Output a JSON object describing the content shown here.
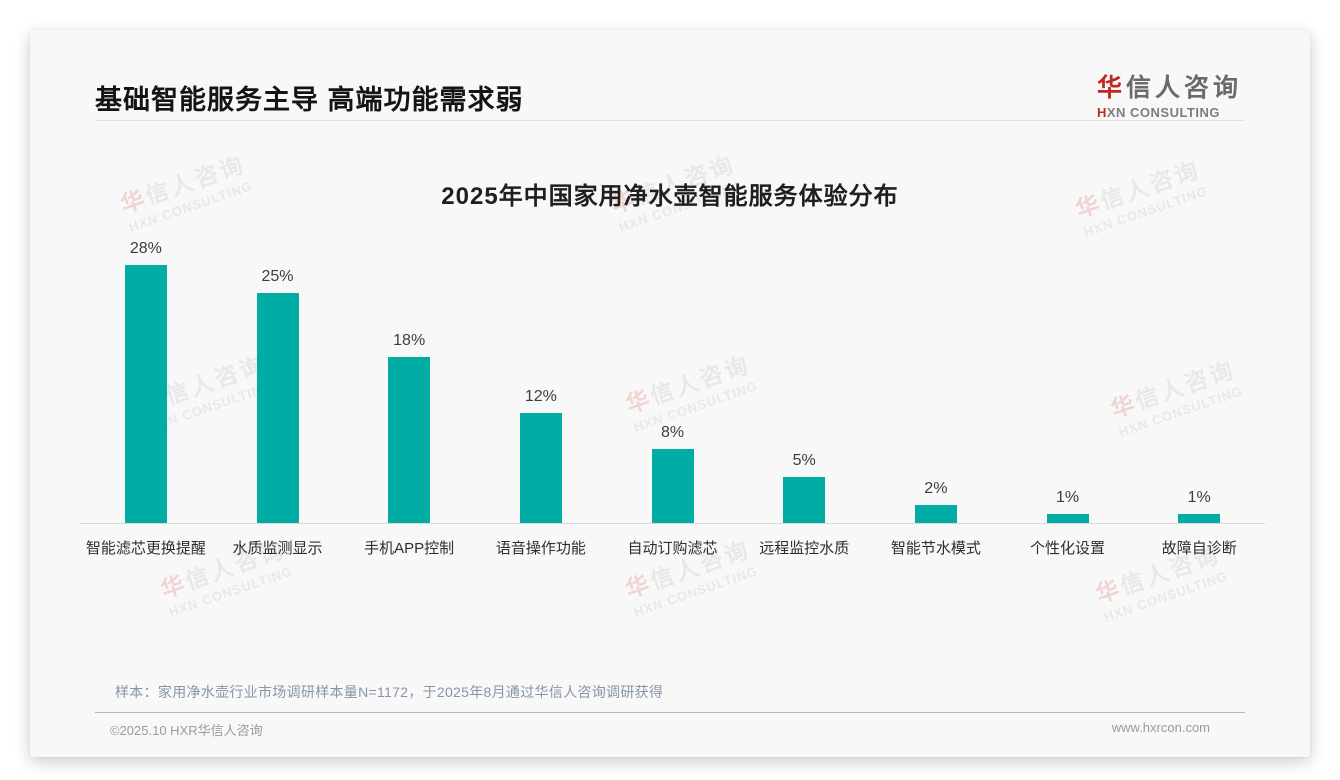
{
  "page": {
    "header": {
      "title": "基础智能服务主导 高端功能需求弱"
    },
    "logo": {
      "cn_first": "华",
      "cn_rest": "信人咨询",
      "en_first": "H",
      "en_rest": "XN CONSULTING"
    },
    "footer": {
      "note": "样本：家用净水壶行业市场调研样本量N=1172，于2025年8月通过华信人咨询调研获得",
      "copyright": "©2025.10 HXR华信人咨询",
      "website": "www.hxrcon.com"
    }
  },
  "watermark": {
    "cn_first": "华",
    "cn_rest": "信人咨询",
    "en": "HXN CONSULTING"
  },
  "chart_data": {
    "type": "bar",
    "title": "2025年中国家用净水壶智能服务体验分布",
    "categories": [
      "智能滤芯更换提醒",
      "水质监测显示",
      "手机APP控制",
      "语音操作功能",
      "自动订购滤芯",
      "远程监控水质",
      "智能节水模式",
      "个性化设置",
      "故障自诊断"
    ],
    "values": [
      28,
      25,
      18,
      12,
      8,
      5,
      2,
      1,
      1
    ],
    "unit": "%",
    "bar_color": "#00ACA3",
    "value_label_color": "#3d3d3d",
    "ylim": [
      0,
      30
    ],
    "grid": false,
    "legend": "none",
    "value_labels_shown": true
  }
}
